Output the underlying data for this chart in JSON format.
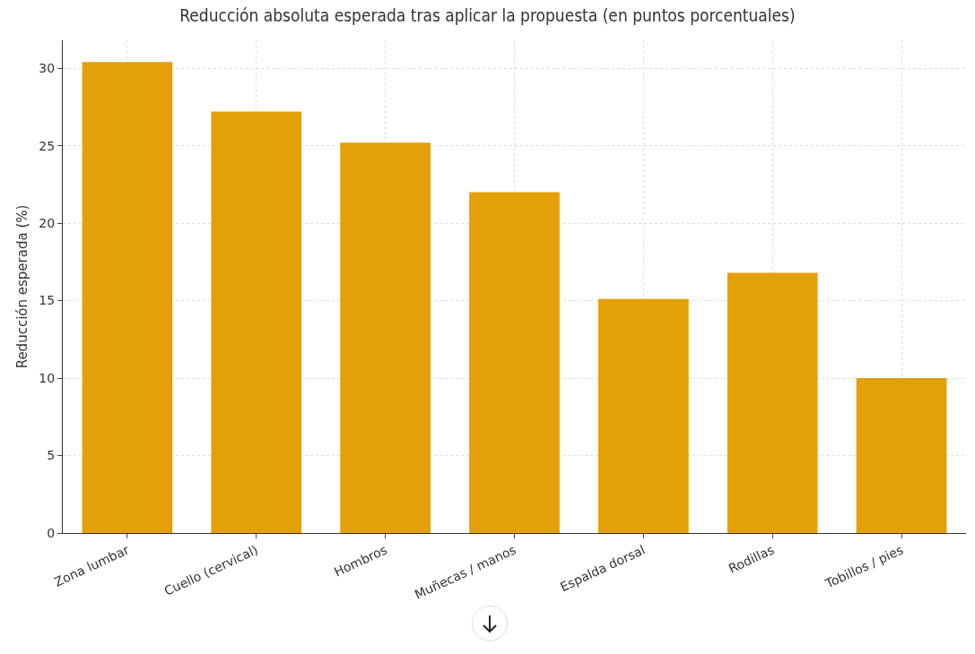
{
  "chart_data": {
    "type": "bar",
    "title": "Reducción absoluta esperada tras aplicar la propuesta (en puntos porcentuales)",
    "ylabel": "Reducción esperada (%)",
    "categories": [
      "Zona lumbar",
      "Cuello (cervical)",
      "Hombros",
      "Muñecas / manos",
      "Espalda dorsal",
      "Rodillas",
      "Tobillos / pies"
    ],
    "values": [
      30.4,
      27.2,
      25.2,
      22.0,
      15.1,
      16.8,
      10.0
    ],
    "color": "#e3a008",
    "ylim": [
      0,
      31.8
    ],
    "yticks": [
      0,
      5,
      10,
      15,
      20,
      25,
      30
    ],
    "grid": true
  }
}
